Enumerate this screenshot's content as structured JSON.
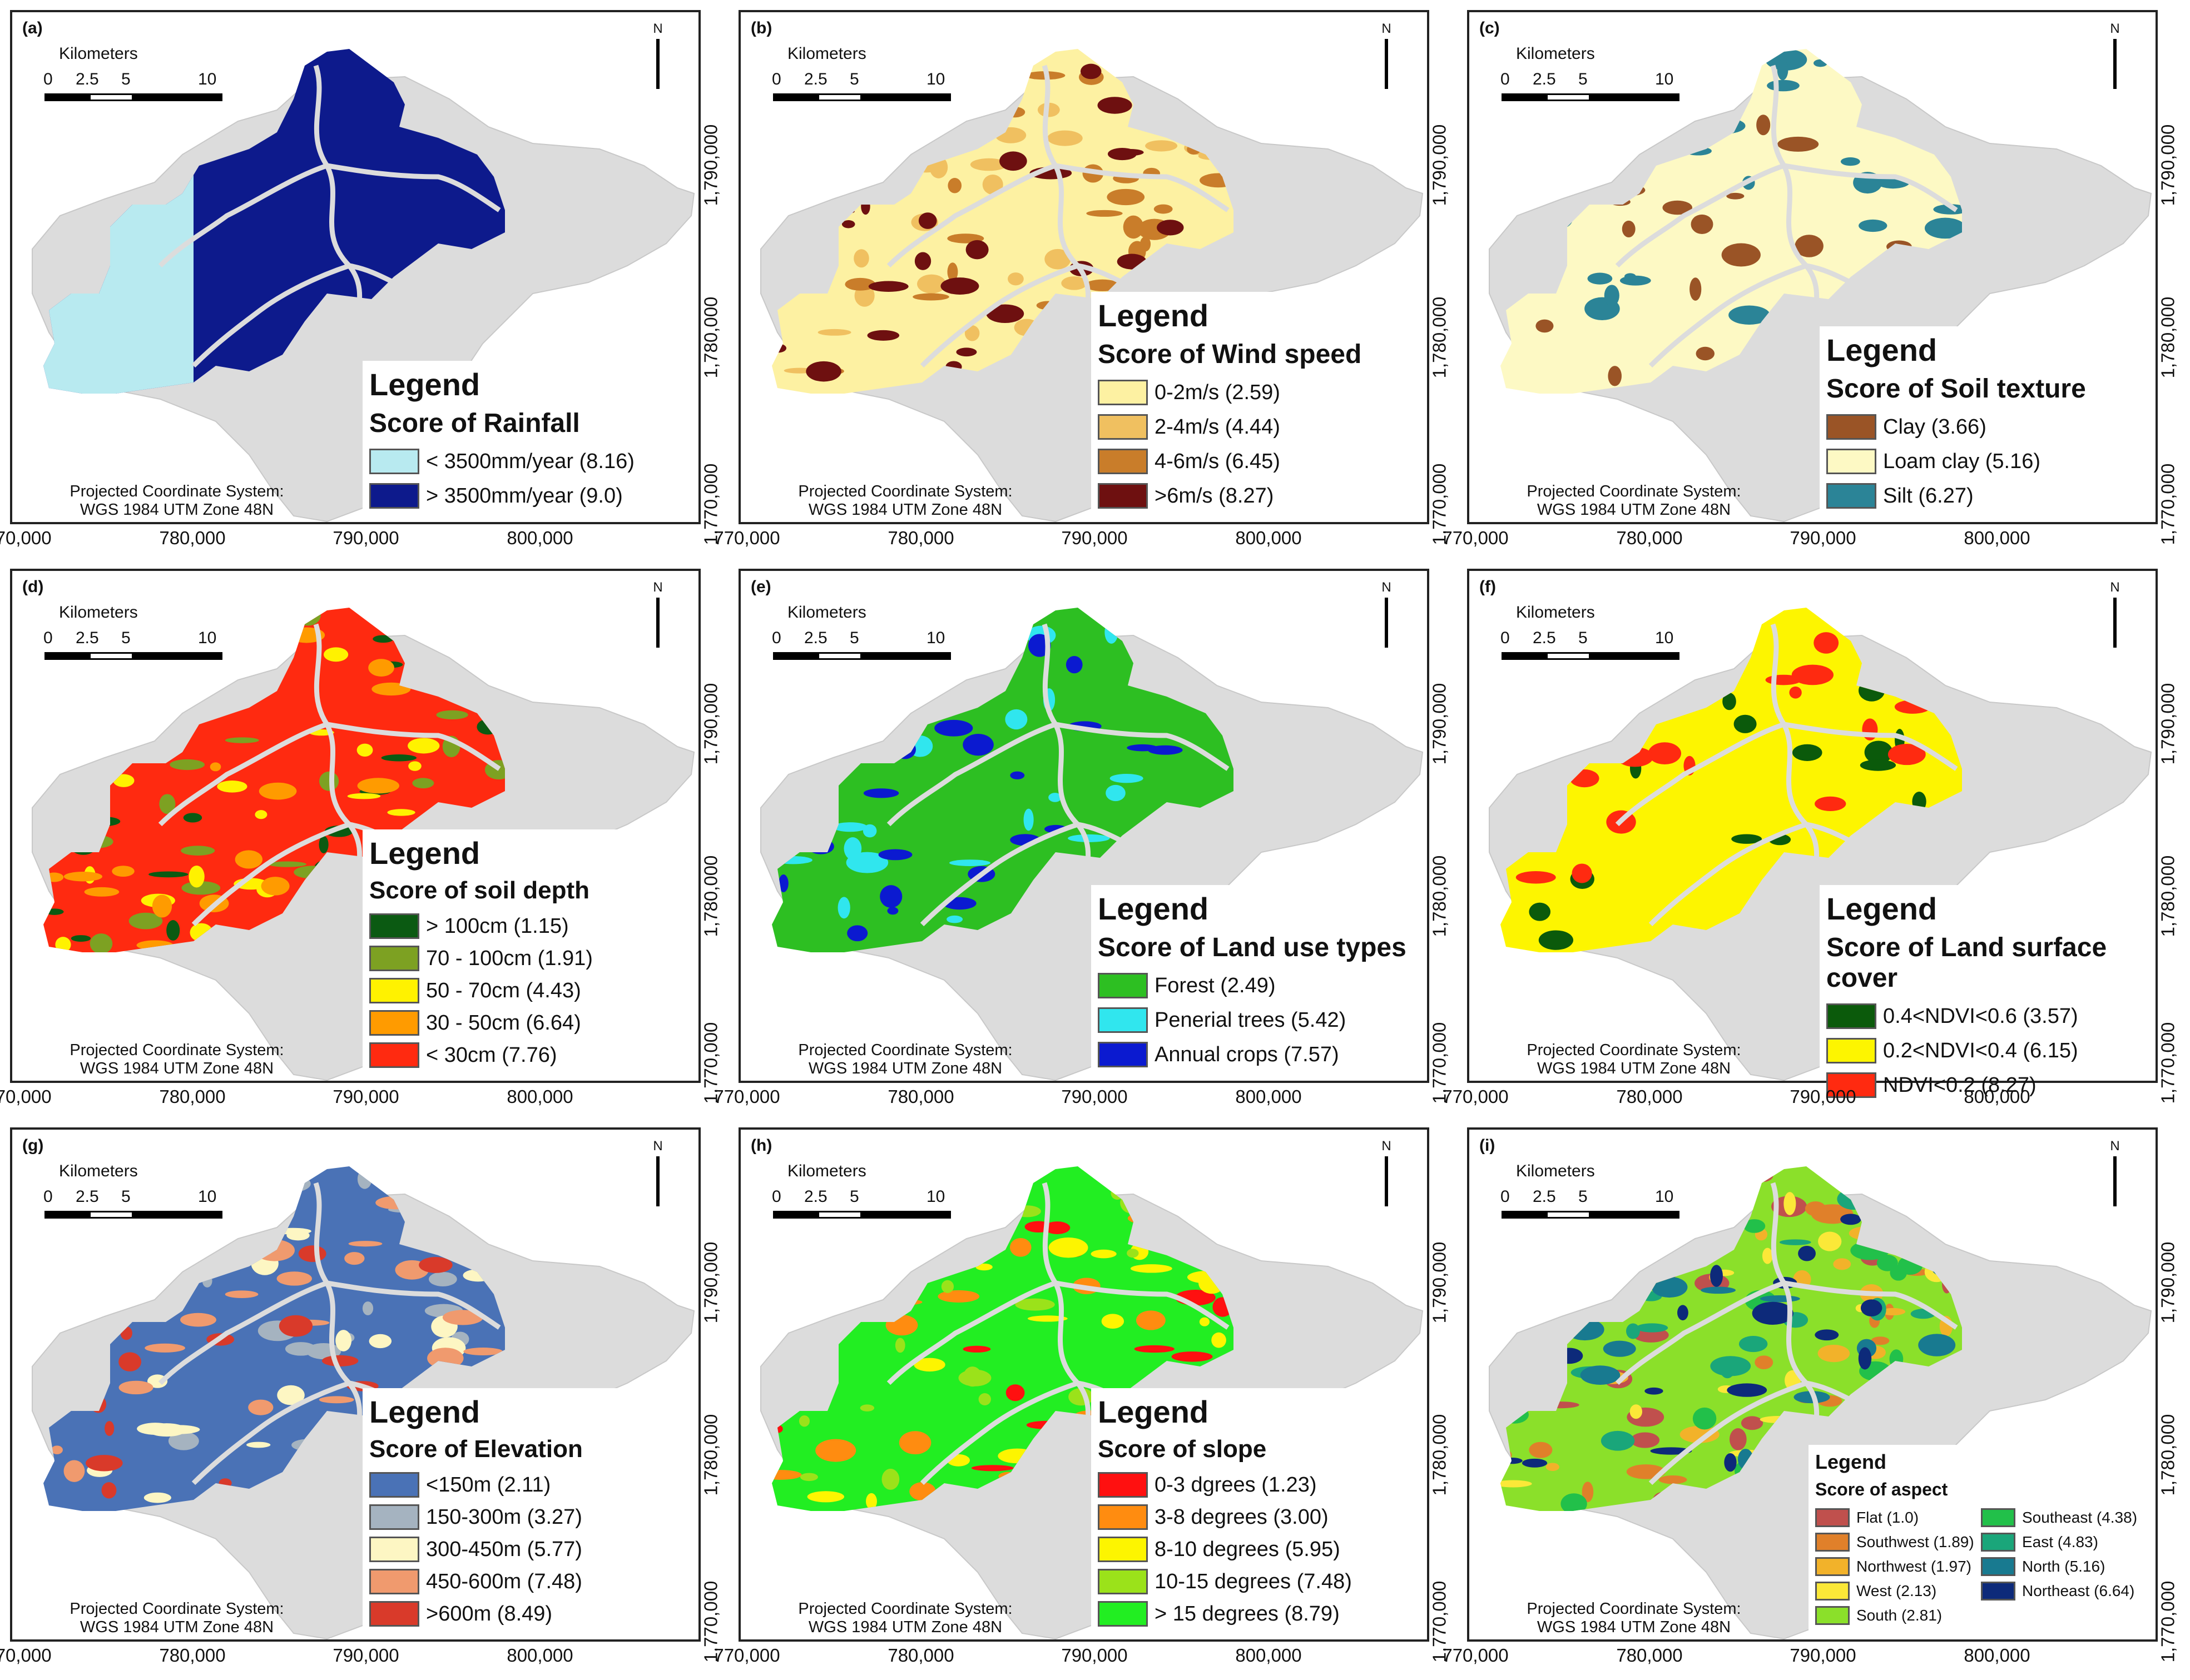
{
  "panels": [
    {
      "letter": "(a)",
      "legend": {
        "heading": "Legend",
        "title": "Score of Rainfall",
        "items": [
          {
            "label": "< 3500mm/year (8.16)",
            "color": "#b8eaf0"
          },
          {
            "label": "> 3500mm/year (9.0)",
            "color": "#0d1a8c"
          }
        ]
      },
      "fill": [
        "#0d1a8c"
      ]
    },
    {
      "letter": "(b)",
      "legend": {
        "heading": "Legend",
        "title": "Score of Wind speed",
        "items": [
          {
            "label": "0-2m/s (2.59)",
            "color": "#fdf1a2"
          },
          {
            "label": "2-4m/s (4.44)",
            "color": "#f0c060"
          },
          {
            "label": "4-6m/s (6.45)",
            "color": "#c97d2a"
          },
          {
            "label": ">6m/s (8.27)",
            "color": "#6e1010"
          }
        ]
      },
      "fill": [
        "#fdf1a2"
      ]
    },
    {
      "letter": "(c)",
      "legend": {
        "heading": "Legend",
        "title": "Score of Soil texture",
        "items": [
          {
            "label": "Clay (3.66)",
            "color": "#9a5426"
          },
          {
            "label": "Loam clay (5.16)",
            "color": "#fdf9c4"
          },
          {
            "label": "Silt (6.27)",
            "color": "#2b8497"
          }
        ]
      },
      "fill": [
        "#fdf9c4"
      ]
    },
    {
      "letter": "(d)",
      "legend": {
        "heading": "Legend",
        "title": "Score of soil depth",
        "items": [
          {
            "label": "> 100cm (1.15)",
            "color": "#0b5a12"
          },
          {
            "label": "70 - 100cm (1.91)",
            "color": "#7da122"
          },
          {
            "label": "50 - 70cm (4.43)",
            "color": "#fff200"
          },
          {
            "label": "30 - 50cm (6.64)",
            "color": "#ff9b00"
          },
          {
            "label": "< 30cm (7.76)",
            "color": "#ff2a10"
          }
        ]
      },
      "fill": [
        "#ff2a10"
      ]
    },
    {
      "letter": "(e)",
      "legend": {
        "heading": "Legend",
        "title": "Score of Land use types",
        "items": [
          {
            "label": "Forest (2.49)",
            "color": "#2dbf22"
          },
          {
            "label": "Penerial trees (5.42)",
            "color": "#30e6ee"
          },
          {
            "label": "Annual crops (7.57)",
            "color": "#0b1ad0"
          }
        ]
      },
      "fill": [
        "#2dbf22"
      ]
    },
    {
      "letter": "(f)",
      "legend": {
        "heading": "Legend",
        "title": "Score of Land surface cover",
        "items": [
          {
            "label": "0.4<NDVI<0.6 (3.57)",
            "color": "#0b5a0b"
          },
          {
            "label": "0.2<NDVI<0.4 (6.15)",
            "color": "#fdf500"
          },
          {
            "label": "NDVI<0.2 (8.27)",
            "color": "#ff2a10"
          }
        ]
      },
      "fill": [
        "#fdf500"
      ]
    },
    {
      "letter": "(g)",
      "legend": {
        "heading": "Legend",
        "title": "Score of Elevation",
        "items": [
          {
            "label": "<150m (2.11)",
            "color": "#4a72b6"
          },
          {
            "label": "150-300m (3.27)",
            "color": "#a5b3c0"
          },
          {
            "label": "300-450m (5.77)",
            "color": "#fdf6c3"
          },
          {
            "label": "450-600m (7.48)",
            "color": "#f09a6e"
          },
          {
            "label": ">600m (8.49)",
            "color": "#d93a2a"
          }
        ]
      },
      "fill": [
        "#4a72b6"
      ]
    },
    {
      "letter": "(h)",
      "legend": {
        "heading": "Legend",
        "title": "Score of slope",
        "items": [
          {
            "label": "0-3 dgrees (1.23)",
            "color": "#ff1010"
          },
          {
            "label": "3-8 degrees (3.00)",
            "color": "#ff8c10"
          },
          {
            "label": "8-10 degrees (5.95)",
            "color": "#fdf500"
          },
          {
            "label": "10-15 degrees (7.48)",
            "color": "#9be21a"
          },
          {
            "label": "> 15 degrees (8.79)",
            "color": "#22ee22"
          }
        ]
      },
      "fill": [
        "#22ee22"
      ]
    },
    {
      "letter": "(i)",
      "legend": {
        "heading": "Legend",
        "title": "Score of aspect",
        "items": [
          {
            "label": "Flat (1.0)",
            "color": "#c0504d"
          },
          {
            "label": "Southwest (1.89)",
            "color": "#e0802a"
          },
          {
            "label": "Northwest (1.97)",
            "color": "#f2b22a"
          },
          {
            "label": "West (2.13)",
            "color": "#fbe838"
          },
          {
            "label": "South (2.81)",
            "color": "#8be02a"
          },
          {
            "label": "Southeast (4.38)",
            "color": "#22c04a"
          },
          {
            "label": "East (4.83)",
            "color": "#1aa67a"
          },
          {
            "label": "North (5.16)",
            "color": "#187a90"
          },
          {
            "label": "Northeast (6.64)",
            "color": "#0d2a7a"
          }
        ]
      },
      "fill": [
        "#8be02a"
      ]
    }
  ],
  "common": {
    "scale_title": "Kilometers",
    "scale_nums": [
      "0",
      "2.5",
      "5",
      "10"
    ],
    "north": "N",
    "projection": [
      "Projected Coordinate System:",
      "WGS 1984 UTM Zone 48N"
    ],
    "x_ticks": [
      "770,000",
      "780,000",
      "790,000",
      "800,000"
    ],
    "y_ticks": [
      "1,790,000",
      "1,780,000",
      "1,770,000"
    ],
    "basin_color": "#dcdcdc"
  }
}
